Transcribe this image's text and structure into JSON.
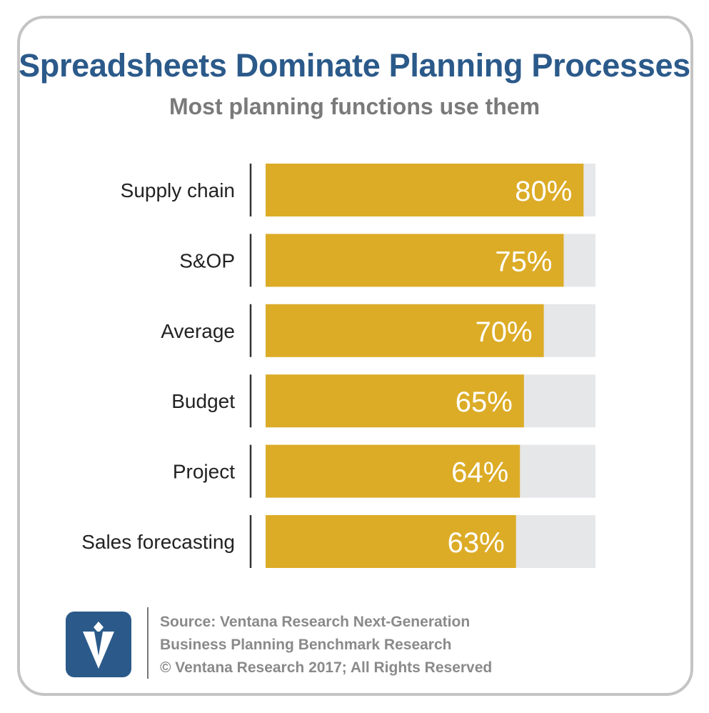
{
  "header": {
    "title": "Spreadsheets Dominate Planning Processes",
    "subtitle": "Most planning functions use them"
  },
  "chart_data": {
    "type": "bar",
    "orientation": "horizontal",
    "title": "Spreadsheets Dominate Planning Processes",
    "subtitle": "Most planning functions use them",
    "xlabel": "",
    "ylabel": "",
    "categories": [
      "Supply chain",
      "S&OP",
      "Average",
      "Budget",
      "Project",
      "Sales forecasting"
    ],
    "values": [
      80,
      75,
      70,
      65,
      64,
      63
    ],
    "value_labels": [
      "80%",
      "75%",
      "70%",
      "65%",
      "64%",
      "63%"
    ],
    "xlim": [
      0,
      83
    ],
    "grid": false,
    "legend": "none",
    "colors": {
      "bar": "#dcac27",
      "track": "#e6e7e9",
      "value_text": "#ffffff",
      "category_text": "#222222",
      "axis": "#333333"
    }
  },
  "footer": {
    "logo": "ventana-research-logo-icon",
    "source_line1": "Source: Ventana Research Next-Generation",
    "source_line2": "Business Planning Benchmark Research",
    "copyright": "© Ventana Research 2017; All Rights Reserved",
    "colors": {
      "logo_bg": "#2b5a8a",
      "text": "#8a8a8a"
    }
  }
}
